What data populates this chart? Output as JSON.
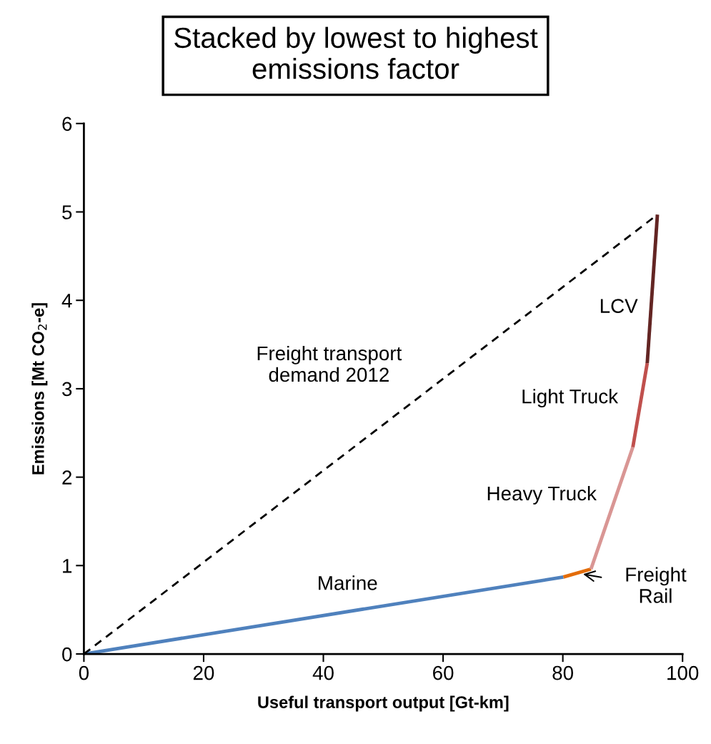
{
  "chart_data": {
    "type": "line",
    "title": "Stacked by lowest to highest\nemissions factor",
    "xlabel": "Useful transport output [Gt-km]",
    "ylabel": "Emissions [Mt CO$_{2}$-e]",
    "series": [
      {
        "name": "Marine",
        "color": "#4f81bd",
        "x": [
          0,
          80.1
        ],
        "values": [
          0,
          0.87
        ]
      },
      {
        "color": "#e36c09",
        "x": [
          80.1,
          84.7
        ],
        "values": [
          0.87,
          0.96
        ]
      },
      {
        "name": "Heavy Truck",
        "color": "#d99694",
        "x": [
          84.7,
          91.7
        ],
        "values": [
          0.96,
          2.34
        ]
      },
      {
        "name": "Light Truck",
        "color": "#c0504d",
        "x": [
          91.7,
          94.1
        ],
        "values": [
          2.34,
          3.29
        ]
      },
      {
        "name": "LCV",
        "color": "#632523",
        "x": [
          94.1,
          95.8
        ],
        "values": [
          3.29,
          4.97
        ]
      },
      {
        "name": "Freight transport\ndemand 2012",
        "color": "#000000",
        "x": [
          0,
          95.8
        ],
        "values": [
          0,
          4.97
        ],
        "line_style": "dashed"
      }
    ],
    "annotations": [
      {
        "text": "Freight\nRail",
        "x": 82.4,
        "y": 0.915
      }
    ],
    "xlim": [
      0,
      100
    ],
    "xticks": [
      0,
      20,
      40,
      60,
      80,
      100
    ],
    "ylim": [
      0,
      6
    ],
    "yticks": [
      0,
      1,
      2,
      3,
      4,
      5,
      6
    ],
    "grid": false,
    "marker": "none"
  }
}
